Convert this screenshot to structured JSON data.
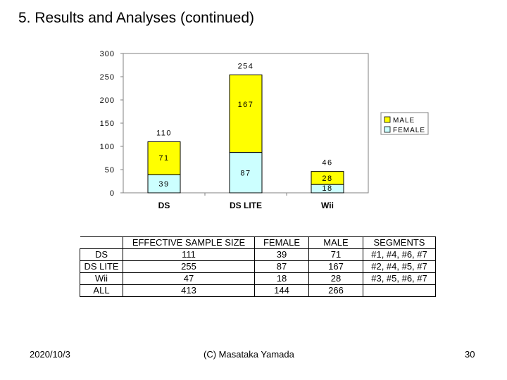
{
  "slide": {
    "title": "5. Results and Analyses (continued)"
  },
  "chart_data": {
    "type": "bar",
    "stacked": true,
    "categories": [
      "DS",
      "DS LITE",
      "Wii"
    ],
    "series": [
      {
        "name": "FEMALE",
        "values": [
          39,
          87,
          18
        ],
        "color": "#ccffff"
      },
      {
        "name": "MALE",
        "values": [
          71,
          167,
          28
        ],
        "color": "#ffff00"
      }
    ],
    "totals": [
      110,
      254,
      46
    ],
    "ylim": [
      0,
      300
    ],
    "yticks": [
      0,
      50,
      100,
      150,
      200,
      250,
      300
    ],
    "legend_position": "right",
    "grid": false
  },
  "table": {
    "headers": [
      "",
      "EFFECTIVE SAMPLE SIZE",
      "FEMALE",
      "MALE",
      "SEGMENTS"
    ],
    "rows": [
      [
        "DS",
        "111",
        "39",
        "71",
        "#1, #4, #6, #7"
      ],
      [
        "DS LITE",
        "255",
        "87",
        "167",
        "#2, #4, #5, #7"
      ],
      [
        "Wii",
        "47",
        "18",
        "28",
        "#3, #5, #6, #7"
      ],
      [
        "ALL",
        "413",
        "144",
        "266",
        ""
      ]
    ]
  },
  "footer": {
    "date": "2020/10/3",
    "copyright": "(C) Masataka Yamada",
    "page_number": "30"
  }
}
